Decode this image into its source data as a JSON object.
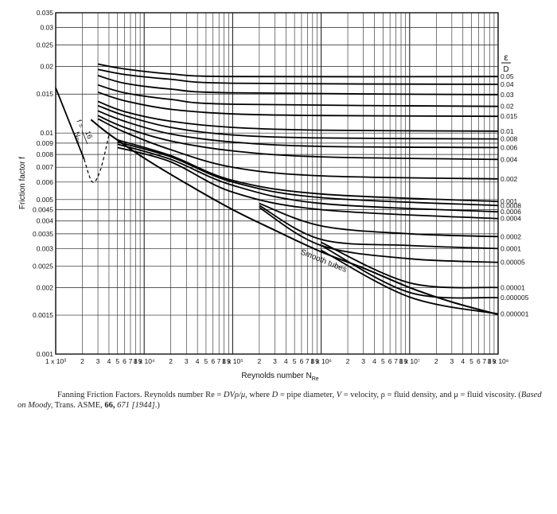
{
  "chart_data": {
    "type": "line",
    "xlabel": "Reynolds number N",
    "xlabel_sub": "Re",
    "ylabel": "Friction factor f",
    "x_scale": "log",
    "y_scale": "log",
    "xlim": [
      1000,
      100000000
    ],
    "ylim": [
      0.001,
      0.035
    ],
    "grid": true,
    "x_tick_labels": [
      {
        "value": 1000,
        "label": "1 x 10³"
      },
      {
        "value": 2000,
        "label": "2"
      },
      {
        "value": 3000,
        "label": "3"
      },
      {
        "value": 4000,
        "label": "4"
      },
      {
        "value": 5000,
        "label": "5"
      },
      {
        "value": 6000,
        "label": "6"
      },
      {
        "value": 7000,
        "label": "7"
      },
      {
        "value": 8000,
        "label": "8"
      },
      {
        "value": 9000,
        "label": "9"
      },
      {
        "value": 10000,
        "label": "1 x 10⁴"
      },
      {
        "value": 20000,
        "label": "2"
      },
      {
        "value": 30000,
        "label": "3"
      },
      {
        "value": 40000,
        "label": "4"
      },
      {
        "value": 50000,
        "label": "5"
      },
      {
        "value": 60000,
        "label": "6"
      },
      {
        "value": 70000,
        "label": "7"
      },
      {
        "value": 80000,
        "label": "8"
      },
      {
        "value": 90000,
        "label": "9"
      },
      {
        "value": 100000,
        "label": "1 x 10⁵"
      },
      {
        "value": 200000,
        "label": "2"
      },
      {
        "value": 300000,
        "label": "3"
      },
      {
        "value": 400000,
        "label": "4"
      },
      {
        "value": 500000,
        "label": "5"
      },
      {
        "value": 600000,
        "label": "6"
      },
      {
        "value": 700000,
        "label": "7"
      },
      {
        "value": 800000,
        "label": "8"
      },
      {
        "value": 900000,
        "label": "9"
      },
      {
        "value": 1000000,
        "label": "1 x 10⁶"
      },
      {
        "value": 2000000,
        "label": "2"
      },
      {
        "value": 3000000,
        "label": "3"
      },
      {
        "value": 4000000,
        "label": "4"
      },
      {
        "value": 5000000,
        "label": "5"
      },
      {
        "value": 6000000,
        "label": "6"
      },
      {
        "value": 7000000,
        "label": "7"
      },
      {
        "value": 8000000,
        "label": "8"
      },
      {
        "value": 9000000,
        "label": "9"
      },
      {
        "value": 10000000,
        "label": "1 x 10⁷"
      },
      {
        "value": 20000000,
        "label": "2"
      },
      {
        "value": 30000000,
        "label": "3"
      },
      {
        "value": 40000000,
        "label": "4"
      },
      {
        "value": 50000000,
        "label": "5"
      },
      {
        "value": 60000000,
        "label": "6"
      },
      {
        "value": 70000000,
        "label": "7"
      },
      {
        "value": 80000000,
        "label": "8"
      },
      {
        "value": 90000000,
        "label": "9"
      },
      {
        "value": 100000000,
        "label": "1 x 10⁸"
      }
    ],
    "y_ticks": [
      {
        "value": 0.001,
        "label": "0.001"
      },
      {
        "value": 0.0015,
        "label": "0.0015"
      },
      {
        "value": 0.002,
        "label": "0.002"
      },
      {
        "value": 0.0025,
        "label": "0.0025"
      },
      {
        "value": 0.003,
        "label": "0.003"
      },
      {
        "value": 0.0035,
        "label": "0.0035"
      },
      {
        "value": 0.004,
        "label": "0.004"
      },
      {
        "value": 0.0045,
        "label": "0.0045"
      },
      {
        "value": 0.005,
        "label": "0.005"
      },
      {
        "value": 0.006,
        "label": "0.006"
      },
      {
        "value": 0.007,
        "label": "0.007"
      },
      {
        "value": 0.008,
        "label": "0.008"
      },
      {
        "value": 0.009,
        "label": "0.009"
      },
      {
        "value": 0.01,
        "label": "0.01"
      },
      {
        "value": 0.015,
        "label": "0.015"
      },
      {
        "value": 0.02,
        "label": "0.02"
      },
      {
        "value": 0.025,
        "label": "0.025"
      },
      {
        "value": 0.03,
        "label": "0.03"
      },
      {
        "value": 0.035,
        "label": "0.035"
      }
    ],
    "roughness_header": {
      "numerator": "ε",
      "denominator": "D"
    },
    "laminar_label": {
      "lhs": "f =",
      "numerator": "16",
      "denominator": "N",
      "denominator_sub": "Re"
    },
    "laminar_line": [
      [
        1000,
        0.016
      ],
      [
        2100,
        0.0076
      ]
    ],
    "transition_curve": [
      [
        2100,
        0.0076
      ],
      [
        2600,
        0.006
      ],
      [
        3200,
        0.0068
      ],
      [
        4000,
        0.0098
      ]
    ],
    "smooth_tubes_label": "Smooth tubes",
    "smooth_tubes": [
      [
        2500,
        0.0115
      ],
      [
        4000,
        0.0099
      ],
      [
        10000,
        0.0077
      ],
      [
        30000,
        0.0059
      ],
      [
        100000,
        0.0045
      ],
      [
        300000,
        0.00363
      ],
      [
        1000000,
        0.0029
      ],
      [
        3000000,
        0.00245
      ],
      [
        10000000,
        0.002
      ],
      [
        30000000,
        0.00172
      ],
      [
        100000000,
        0.00151
      ]
    ],
    "series": [
      {
        "name": "0.05",
        "points": [
          [
            3000,
            0.0205
          ],
          [
            6000,
            0.0195
          ],
          [
            20000,
            0.0185
          ],
          [
            100000,
            0.018
          ],
          [
            100000000,
            0.018
          ]
        ]
      },
      {
        "name": "0.04",
        "points": [
          [
            3000,
            0.0194
          ],
          [
            6000,
            0.0184
          ],
          [
            20000,
            0.0175
          ],
          [
            100000,
            0.0168
          ],
          [
            100000000,
            0.0166
          ]
        ]
      },
      {
        "name": "0.03",
        "points": [
          [
            3000,
            0.0182
          ],
          [
            6000,
            0.0168
          ],
          [
            20000,
            0.0158
          ],
          [
            100000,
            0.0152
          ],
          [
            100000000,
            0.0149
          ]
        ]
      },
      {
        "name": "0.02",
        "points": [
          [
            3000,
            0.0165
          ],
          [
            6000,
            0.0152
          ],
          [
            20000,
            0.0142
          ],
          [
            100000,
            0.0135
          ],
          [
            100000000,
            0.0132
          ]
        ]
      },
      {
        "name": "0.015",
        "points": [
          [
            3000,
            0.0153
          ],
          [
            6000,
            0.014
          ],
          [
            20000,
            0.0128
          ],
          [
            100000,
            0.0122
          ],
          [
            1000000,
            0.012
          ],
          [
            100000000,
            0.0119
          ]
        ]
      },
      {
        "name": "0.01",
        "points": [
          [
            3000,
            0.0139
          ],
          [
            6000,
            0.0125
          ],
          [
            20000,
            0.0113
          ],
          [
            100000,
            0.0106
          ],
          [
            1000000,
            0.0103
          ],
          [
            100000000,
            0.0102
          ]
        ]
      },
      {
        "name": "0.008",
        "points": [
          [
            3000,
            0.0133
          ],
          [
            6000,
            0.012
          ],
          [
            20000,
            0.0106
          ],
          [
            100000,
            0.0098
          ],
          [
            1000000,
            0.0095
          ],
          [
            100000000,
            0.0094
          ]
        ]
      },
      {
        "name": "0.006",
        "points": [
          [
            3000,
            0.0126
          ],
          [
            6000,
            0.0113
          ],
          [
            20000,
            0.0099
          ],
          [
            100000,
            0.0091
          ],
          [
            1000000,
            0.0087
          ],
          [
            100000000,
            0.0086
          ]
        ]
      },
      {
        "name": "0.004",
        "points": [
          [
            3000,
            0.012
          ],
          [
            6000,
            0.0106
          ],
          [
            20000,
            0.0092
          ],
          [
            100000,
            0.0083
          ],
          [
            1000000,
            0.0078
          ],
          [
            100000000,
            0.0076
          ]
        ]
      },
      {
        "name": "0.002",
        "points": [
          [
            3000,
            0.0116
          ],
          [
            6000,
            0.0101
          ],
          [
            20000,
            0.0084
          ],
          [
            100000,
            0.007
          ],
          [
            1000000,
            0.0064
          ],
          [
            100000000,
            0.0062
          ]
        ]
      },
      {
        "name": "0.001",
        "points": [
          [
            5000,
            0.0093
          ],
          [
            20000,
            0.0079
          ],
          [
            100000,
            0.0061
          ],
          [
            1000000,
            0.0053
          ],
          [
            100000000,
            0.0049
          ]
        ]
      },
      {
        "name": "0.0008",
        "points": [
          [
            5000,
            0.0091
          ],
          [
            20000,
            0.0078
          ],
          [
            100000,
            0.006
          ],
          [
            1000000,
            0.0051
          ],
          [
            100000000,
            0.0047
          ]
        ]
      },
      {
        "name": "0.0006",
        "points": [
          [
            5000,
            0.0089
          ],
          [
            20000,
            0.0076
          ],
          [
            100000,
            0.0058
          ],
          [
            1000000,
            0.0048
          ],
          [
            100000000,
            0.0044
          ]
        ]
      },
      {
        "name": "0.0004",
        "points": [
          [
            5000,
            0.0086
          ],
          [
            20000,
            0.0074
          ],
          [
            100000,
            0.0054
          ],
          [
            1000000,
            0.0045
          ],
          [
            100000000,
            0.0041
          ]
        ]
      },
      {
        "name": "0.0002",
        "points": [
          [
            200000,
            0.0048
          ],
          [
            1000000,
            0.0038
          ],
          [
            10000000,
            0.0035
          ],
          [
            100000000,
            0.0034
          ]
        ]
      },
      {
        "name": "0.0001",
        "points": [
          [
            200000,
            0.0047
          ],
          [
            1000000,
            0.0033
          ],
          [
            10000000,
            0.0031
          ],
          [
            100000000,
            0.003
          ]
        ]
      },
      {
        "name": "0.00005",
        "points": [
          [
            200000,
            0.0046
          ],
          [
            1000000,
            0.0031
          ],
          [
            10000000,
            0.0027
          ],
          [
            100000000,
            0.0026
          ]
        ]
      },
      {
        "name": "0.00001",
        "points": [
          [
            1000000,
            0.0032
          ],
          [
            10000000,
            0.0021
          ],
          [
            100000000,
            0.002
          ]
        ]
      },
      {
        "name": "0.000005",
        "points": [
          [
            1000000,
            0.0031
          ],
          [
            10000000,
            0.0019
          ],
          [
            100000000,
            0.0018
          ]
        ]
      },
      {
        "name": "0.000001",
        "points": [
          [
            1000000,
            0.00295
          ],
          [
            10000000,
            0.00181
          ],
          [
            100000000,
            0.00152
          ]
        ]
      }
    ]
  },
  "caption": {
    "lead": "Fanning Friction Factors. Reynolds number Re = ",
    "re_expr": "DVρ/μ",
    "mid1": ", where ",
    "d_sym": "D",
    "mid2": " = pipe diameter, ",
    "v_sym": "V",
    "mid3": " = velocity, ρ = fluid density, and μ = fluid viscosity. (",
    "based_on": "Based on Moody,",
    "trans": " Trans. ASME, ",
    "vol": "66,",
    "tail_italic": " 671 [1944]",
    "end": ".)"
  }
}
